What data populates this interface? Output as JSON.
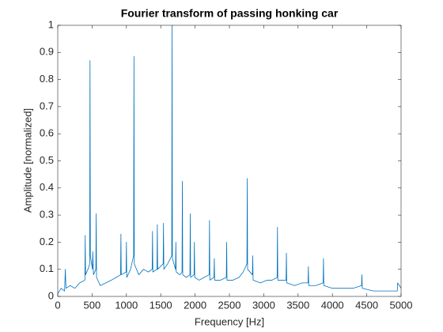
{
  "chart_data": {
    "type": "line",
    "title": "Fourier transform of passing honking car",
    "xlabel": "Frequency [Hz]",
    "ylabel": "Amplitude [normalized]",
    "xlim": [
      0,
      5000
    ],
    "ylim": [
      0,
      1
    ],
    "xticks": [
      0,
      500,
      1000,
      1500,
      2000,
      2500,
      3000,
      3500,
      4000,
      4500,
      5000
    ],
    "yticks": [
      0,
      0.1,
      0.2,
      0.3,
      0.4,
      0.5,
      0.6,
      0.7,
      0.8,
      0.9,
      1
    ],
    "color": "#0072bd",
    "x": [
      0,
      50,
      100,
      110,
      120,
      180,
      250,
      320,
      395,
      400,
      405,
      440,
      465,
      470,
      475,
      505,
      510,
      520,
      555,
      560,
      565,
      620,
      700,
      780,
      850,
      915,
      920,
      925,
      995,
      1000,
      1005,
      1060,
      1105,
      1110,
      1115,
      1180,
      1250,
      1320,
      1375,
      1380,
      1385,
      1445,
      1450,
      1455,
      1535,
      1540,
      1545,
      1600,
      1660,
      1665,
      1670,
      1715,
      1720,
      1725,
      1780,
      1810,
      1815,
      1820,
      1870,
      1925,
      1930,
      1935,
      1985,
      1990,
      1995,
      2060,
      2130,
      2205,
      2210,
      2215,
      2275,
      2280,
      2285,
      2370,
      2455,
      2460,
      2465,
      2550,
      2640,
      2700,
      2755,
      2760,
      2765,
      2835,
      2840,
      2845,
      2950,
      3050,
      3120,
      3195,
      3200,
      3205,
      3325,
      3330,
      3335,
      3450,
      3560,
      3645,
      3650,
      3655,
      3760,
      3865,
      3870,
      3875,
      4000,
      4150,
      4300,
      4425,
      4430,
      4435,
      4600,
      4800,
      4945,
      4950,
      5000
    ],
    "values": [
      0.01,
      0.03,
      0.02,
      0.1,
      0.03,
      0.04,
      0.03,
      0.05,
      0.06,
      0.225,
      0.08,
      0.1,
      0.12,
      0.87,
      0.15,
      0.1,
      0.165,
      0.08,
      0.1,
      0.305,
      0.07,
      0.04,
      0.05,
      0.06,
      0.07,
      0.08,
      0.23,
      0.08,
      0.09,
      0.2,
      0.07,
      0.1,
      0.15,
      0.885,
      0.12,
      0.08,
      0.1,
      0.09,
      0.1,
      0.24,
      0.09,
      0.1,
      0.265,
      0.1,
      0.12,
      0.27,
      0.1,
      0.12,
      0.15,
      1.0,
      0.14,
      0.1,
      0.2,
      0.09,
      0.08,
      0.09,
      0.425,
      0.08,
      0.07,
      0.08,
      0.305,
      0.07,
      0.08,
      0.2,
      0.07,
      0.06,
      0.07,
      0.08,
      0.28,
      0.06,
      0.07,
      0.14,
      0.06,
      0.06,
      0.07,
      0.2,
      0.06,
      0.06,
      0.07,
      0.09,
      0.12,
      0.435,
      0.1,
      0.08,
      0.15,
      0.06,
      0.05,
      0.06,
      0.06,
      0.07,
      0.255,
      0.06,
      0.06,
      0.16,
      0.05,
      0.04,
      0.05,
      0.05,
      0.11,
      0.04,
      0.04,
      0.05,
      0.14,
      0.04,
      0.03,
      0.03,
      0.03,
      0.04,
      0.08,
      0.03,
      0.02,
      0.02,
      0.02,
      0.05,
      0.03
    ]
  }
}
